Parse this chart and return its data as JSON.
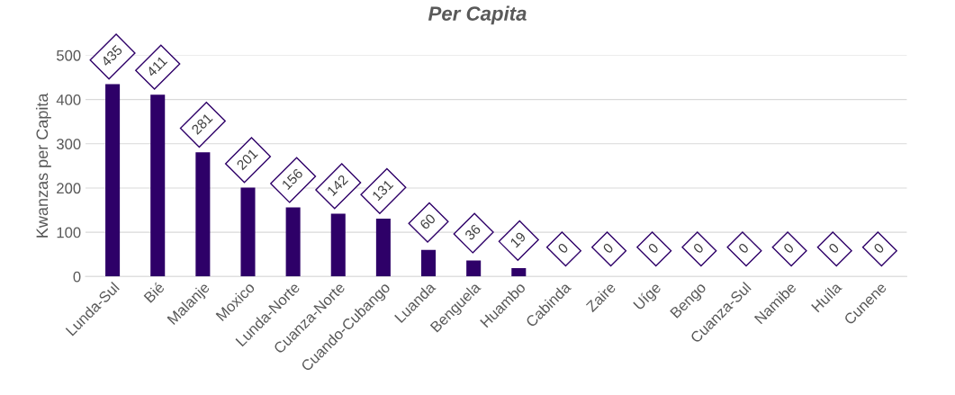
{
  "chart_data": {
    "type": "bar",
    "title": "Per Capita",
    "ylabel": "Kwanzas per Capita",
    "categories": [
      "Lunda-Sul",
      "Bié",
      "Malanje",
      "Moxico",
      "Lunda-Norte",
      "Cuanza-Norte",
      "Cuando-Cubango",
      "Luanda",
      "Benguela",
      "Huambo",
      "Cabinda",
      "Zaire",
      "Uíge",
      "Bengo",
      "Cuanza-Sul",
      "Namibe",
      "Huíla",
      "Cunene"
    ],
    "values": [
      435,
      411,
      281,
      201,
      156,
      142,
      131,
      60,
      36,
      19,
      0,
      0,
      0,
      0,
      0,
      0,
      0,
      0
    ],
    "color": "#2e0068",
    "ylim": [
      0,
      500
    ],
    "yticks": [
      0,
      100,
      200,
      300,
      400,
      500
    ],
    "grid": "y",
    "data_labels": true
  }
}
